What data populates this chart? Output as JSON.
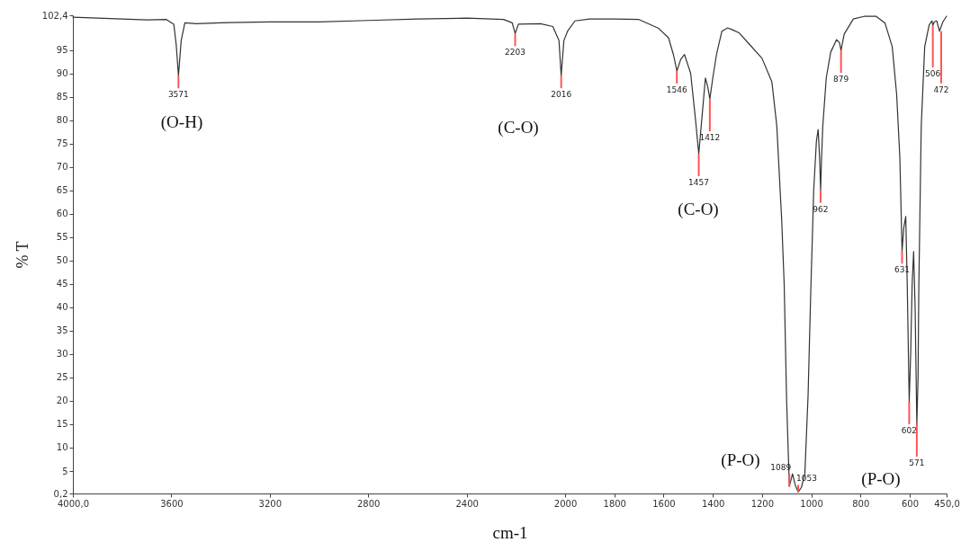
{
  "chart_data": {
    "type": "line",
    "xlabel": "cm-1",
    "ylabel": "% T",
    "xlim": [
      4000,
      450
    ],
    "ylim": [
      0.2,
      102.4
    ],
    "xticks": [
      {
        "value": 4000,
        "label": "4000,0"
      },
      3600,
      3200,
      2800,
      2400,
      2000,
      1800,
      1600,
      1400,
      1200,
      1000,
      800,
      600,
      {
        "value": 450,
        "label": "450,0"
      }
    ],
    "yticks": [
      {
        "value": 0.2,
        "label": "0,2"
      },
      5,
      10,
      15,
      20,
      25,
      30,
      35,
      40,
      45,
      50,
      55,
      60,
      65,
      70,
      75,
      80,
      85,
      90,
      95,
      {
        "value": 102.4,
        "label": "102,4"
      }
    ],
    "line_style": "solid",
    "series": [
      {
        "color": "#333333",
        "x": [
          4000,
          3900,
          3800,
          3700,
          3620,
          3590,
          3580,
          3571,
          3560,
          3545,
          3500,
          3400,
          3200,
          3000,
          2800,
          2600,
          2400,
          2250,
          2215,
          2203,
          2190,
          2100,
          2050,
          2025,
          2016,
          2005,
          1990,
          1960,
          1900,
          1800,
          1700,
          1620,
          1580,
          1560,
          1546,
          1530,
          1515,
          1490,
          1470,
          1457,
          1445,
          1430,
          1420,
          1412,
          1400,
          1385,
          1363,
          1340,
          1320,
          1292,
          1253,
          1200,
          1160,
          1140,
          1120,
          1110,
          1100,
          1089,
          1076,
          1065,
          1053,
          1040,
          1026,
          1013,
          1003,
          990,
          979,
          972,
          966,
          962,
          958,
          953,
          939,
          921,
          897,
          885,
          879,
          866,
          829,
          782,
          737,
          700,
          671,
          653,
          640,
          631,
          624,
          616,
          610,
          602,
          596,
          590,
          584,
          578,
          571,
          566,
          563,
          553,
          539,
          521,
          510,
          506,
          500,
          490,
          479,
          465,
          450
        ],
        "values": [
          102.0,
          101.8,
          101.6,
          101.4,
          101.5,
          100.5,
          96,
          89.5,
          97,
          100.8,
          100.6,
          100.8,
          101.0,
          101.0,
          101.3,
          101.6,
          101.8,
          101.5,
          100.8,
          98.5,
          100.5,
          100.6,
          100.0,
          97,
          89.5,
          97,
          99,
          101.2,
          101.6,
          101.6,
          101.5,
          99.6,
          97.6,
          94,
          90.5,
          93,
          94,
          90,
          80,
          72.8,
          80,
          89,
          87,
          84.5,
          89,
          94,
          99,
          99.7,
          99.3,
          98.6,
          96.3,
          93.2,
          88.2,
          78.8,
          58.6,
          45,
          20,
          1.7,
          4.4,
          2,
          0.5,
          1.5,
          4.4,
          21,
          41.3,
          65,
          75.5,
          78,
          72,
          65,
          72,
          78.8,
          89,
          94.5,
          97.2,
          96.5,
          94.9,
          98.4,
          101.6,
          102.2,
          102.2,
          100.7,
          95.7,
          85.5,
          72,
          52,
          57,
          59.4,
          45,
          19.8,
          30,
          45,
          51.9,
          40,
          15,
          25,
          44,
          78.8,
          95.7,
          100.3,
          101.2,
          100.3,
          101.0,
          101.2,
          99,
          101,
          102.2
        ]
      }
    ],
    "annotations": [
      {
        "text": "3571",
        "x": 3571,
        "y": 89.5
      },
      {
        "text": "2203",
        "x": 2203,
        "y": 98.5
      },
      {
        "text": "2016",
        "x": 2016,
        "y": 89.5
      },
      {
        "text": "1546",
        "x": 1546,
        "y": 90.5
      },
      {
        "text": "1457",
        "x": 1457,
        "y": 72.8
      },
      {
        "text": "1412",
        "x": 1412,
        "y": 84.5
      },
      {
        "text": "1089",
        "x": 1089,
        "y": 1.7
      },
      {
        "text": "1053",
        "x": 1053,
        "y": 0.5
      },
      {
        "text": "962",
        "x": 962,
        "y": 65
      },
      {
        "text": "879",
        "x": 879,
        "y": 94.9
      },
      {
        "text": "631",
        "x": 631,
        "y": 52
      },
      {
        "text": "602",
        "x": 602,
        "y": 19.8
      },
      {
        "text": "571",
        "x": 571,
        "y": 15
      },
      {
        "text": "506",
        "x": 506,
        "y": 100.3
      },
      {
        "text": "472",
        "x": 472,
        "y": 99
      },
      "(O-H)",
      "(C-O)",
      "(C-O)",
      "(P-O)",
      "(P-O)"
    ]
  }
}
